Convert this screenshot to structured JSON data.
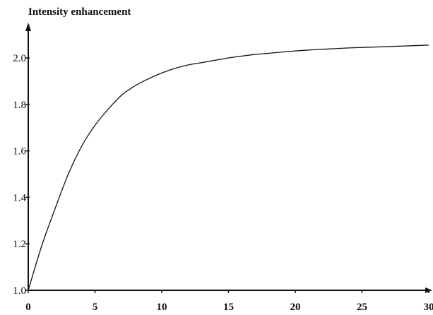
{
  "chart_data": {
    "type": "line",
    "title": "",
    "xlabel": "",
    "ylabel": "Intensity enhancement",
    "xlim": [
      0,
      30
    ],
    "ylim": [
      1.0,
      2.1
    ],
    "grid": false,
    "x_ticks": [
      0,
      5,
      10,
      15,
      20,
      25,
      30
    ],
    "x_tick_labels": [
      "0",
      "5",
      "10",
      "15",
      "20",
      "25",
      "30"
    ],
    "y_ticks": [
      1.0,
      1.2,
      1.4,
      1.6,
      1.8,
      2.0
    ],
    "y_tick_labels": [
      "1.0",
      "1.2",
      "1.4",
      "1.6",
      "1.8",
      "2.0"
    ],
    "series": [
      {
        "x": [
          0,
          1,
          2,
          3,
          4,
          5,
          6,
          7,
          8,
          9,
          10,
          11,
          12,
          13,
          14,
          15,
          16,
          17,
          18,
          19,
          20,
          21,
          22,
          23,
          24,
          25,
          26,
          27,
          28,
          29,
          30
        ],
        "y": [
          1.0,
          1.19,
          1.35,
          1.5,
          1.62,
          1.71,
          1.78,
          1.84,
          1.88,
          1.91,
          1.935,
          1.955,
          1.97,
          1.98,
          1.99,
          2.0,
          2.008,
          2.015,
          2.02,
          2.025,
          2.03,
          2.034,
          2.037,
          2.04,
          2.043,
          2.045,
          2.047,
          2.049,
          2.051,
          2.053,
          2.055
        ]
      }
    ]
  }
}
